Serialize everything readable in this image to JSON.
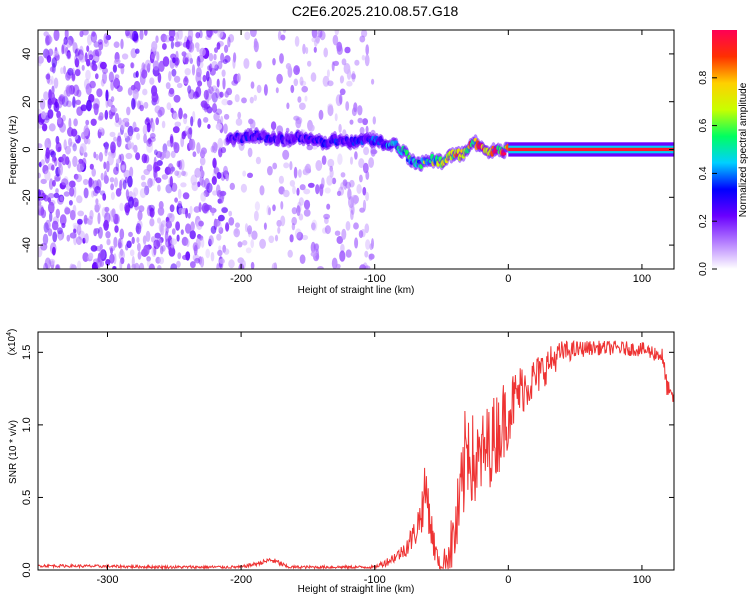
{
  "title": "C2E6.2025.210.08.57.G18",
  "colors": {
    "signal_line": "#ee3333",
    "frame": "#000000",
    "scatter": "#8a2be2"
  },
  "chart_data": [
    {
      "type": "heatmap",
      "xlabel": "Height of straight line (km)",
      "ylabel": "Frequency (Hz)",
      "xlim": [
        -352,
        124
      ],
      "ylim": [
        -50,
        50
      ],
      "x_ticks": [
        {
          "value": -300,
          "label": "-300"
        },
        {
          "value": -200,
          "label": "-200"
        },
        {
          "value": -100,
          "label": "-100"
        },
        {
          "value": 0,
          "label": "0"
        },
        {
          "value": 100,
          "label": "100"
        }
      ],
      "y_ticks": [
        {
          "value": -40,
          "label": "-40"
        },
        {
          "value": -20,
          "label": "-20"
        },
        {
          "value": 0,
          "label": "0"
        },
        {
          "value": 20,
          "label": "20"
        },
        {
          "value": 40,
          "label": "40"
        }
      ],
      "colorbar": {
        "label": "Normalized spectral amplitude",
        "range": [
          0,
          1
        ],
        "ticks": [
          {
            "value": 0.0,
            "label": "0.0"
          },
          {
            "value": 0.2,
            "label": "0.2"
          },
          {
            "value": 0.4,
            "label": "0.4"
          },
          {
            "value": 0.6,
            "label": "0.6"
          },
          {
            "value": 0.8,
            "label": "0.8"
          }
        ],
        "colormap": [
          "#ffffff",
          "#b57fff",
          "#6a00ff",
          "#0000ff",
          "#00d0ff",
          "#00ff60",
          "#c8ff00",
          "#ffd000",
          "#ff3000",
          "#ff0055"
        ]
      },
      "peak_track": {
        "x": [
          -210,
          -200,
          -190,
          -180,
          -170,
          -160,
          -150,
          -140,
          -130,
          -120,
          -110,
          -100,
          -95,
          -90,
          -85,
          -80,
          -75,
          -70,
          -65,
          -60,
          -55,
          -50,
          -45,
          -40,
          -35,
          -30,
          -25,
          -20,
          -15,
          -10,
          -5,
          0,
          20,
          60,
          100,
          122
        ],
        "y": [
          4,
          5,
          6,
          5,
          4,
          5,
          4,
          3,
          4,
          3,
          4,
          4,
          3,
          2,
          2,
          0,
          -3,
          -5,
          -6,
          -4,
          -5,
          -5,
          -3,
          -2,
          -2,
          0,
          3,
          1,
          -1,
          0,
          -1,
          0,
          0,
          0,
          0,
          0
        ],
        "amplitude": [
          0.25,
          0.3,
          0.28,
          0.3,
          0.25,
          0.28,
          0.3,
          0.3,
          0.32,
          0.3,
          0.32,
          0.35,
          0.4,
          0.45,
          0.45,
          0.5,
          0.5,
          0.5,
          0.55,
          0.6,
          0.6,
          0.65,
          0.7,
          0.75,
          0.8,
          0.8,
          0.85,
          0.85,
          0.9,
          0.9,
          0.9,
          0.92,
          0.95,
          0.95,
          0.95,
          0.95
        ]
      },
      "noise_region": {
        "xmin": -352,
        "xmax": -100,
        "dense_until": -210
      }
    },
    {
      "type": "line",
      "xlabel": "Height of straight line (km)",
      "ylabel": "SNR (10 * v/v)",
      "y_multiplier_label": "(x10",
      "y_multiplier_exp": "4",
      "y_multiplier_close": ")",
      "xlim": [
        -352,
        124
      ],
      "ylim": [
        0,
        1.64
      ],
      "x_ticks": [
        {
          "value": -300,
          "label": "-300"
        },
        {
          "value": -200,
          "label": "-200"
        },
        {
          "value": -100,
          "label": "-100"
        },
        {
          "value": 0,
          "label": "0"
        },
        {
          "value": 100,
          "label": "100"
        }
      ],
      "y_ticks": [
        {
          "value": 0.0,
          "label": "0.0"
        },
        {
          "value": 0.5,
          "label": "0.5"
        },
        {
          "value": 1.0,
          "label": "1.0"
        },
        {
          "value": 1.5,
          "label": "1.5"
        }
      ],
      "series": [
        {
          "x": [
            -352,
            -300,
            -250,
            -200,
            -185,
            -178,
            -172,
            -165,
            -150,
            -120,
            -100,
            -90,
            -80,
            -75,
            -70,
            -65,
            -62,
            -60,
            -58,
            -55,
            -52,
            -50,
            -45,
            -40,
            -35,
            -32,
            -30,
            -28,
            -25,
            -20,
            -15,
            -10,
            -5,
            0,
            5,
            10,
            20,
            30,
            40,
            60,
            80,
            100,
            115,
            118,
            121,
            124
          ],
          "y": [
            0.03,
            0.025,
            0.02,
            0.02,
            0.05,
            0.07,
            0.05,
            0.02,
            0.02,
            0.02,
            0.02,
            0.06,
            0.12,
            0.18,
            0.25,
            0.4,
            0.55,
            0.48,
            0.3,
            0.15,
            0.05,
            0.03,
            0.1,
            0.25,
            0.5,
            0.8,
            0.9,
            0.8,
            0.7,
            0.78,
            0.85,
            0.92,
            1.0,
            1.1,
            1.18,
            1.25,
            1.32,
            1.42,
            1.5,
            1.53,
            1.53,
            1.52,
            1.48,
            1.3,
            1.2,
            1.18
          ],
          "noise": [
            0.01,
            0.01,
            0.01,
            0.01,
            0.015,
            0.02,
            0.02,
            0.01,
            0.01,
            0.01,
            0.01,
            0.03,
            0.05,
            0.08,
            0.1,
            0.15,
            0.2,
            0.2,
            0.15,
            0.1,
            0.05,
            0.05,
            0.15,
            0.25,
            0.35,
            0.35,
            0.4,
            0.35,
            0.3,
            0.3,
            0.3,
            0.3,
            0.3,
            0.25,
            0.2,
            0.18,
            0.15,
            0.12,
            0.08,
            0.05,
            0.05,
            0.05,
            0.06,
            0.08,
            0.06,
            0.05
          ]
        }
      ]
    }
  ]
}
